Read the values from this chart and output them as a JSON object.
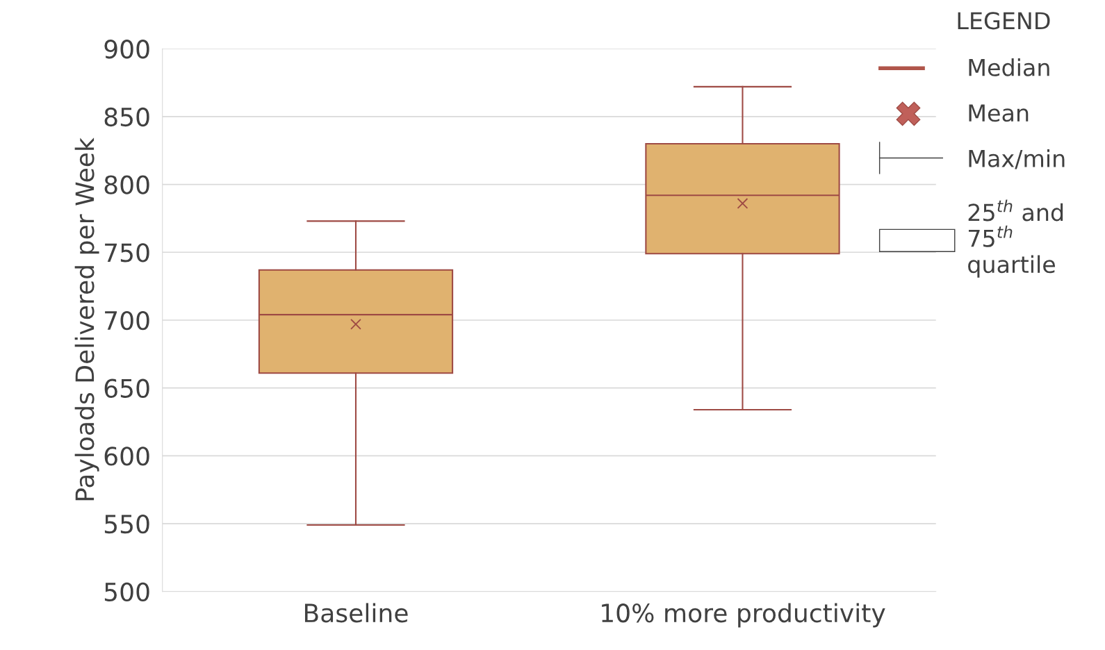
{
  "chart_data": {
    "type": "box",
    "ylabel": "Payloads Delivered per Week",
    "categories": [
      "Baseline",
      "10% more productivity"
    ],
    "boxes": [
      {
        "low": 549,
        "q1": 661,
        "median": 704,
        "q3": 737,
        "high": 773,
        "mean": 697
      },
      {
        "low": 634,
        "q1": 749,
        "median": 792,
        "q3": 830,
        "high": 872,
        "mean": 786
      }
    ],
    "color": "#e0b26f",
    "ylim": [
      500,
      900
    ],
    "yticks": [
      500,
      550,
      600,
      650,
      700,
      750,
      800,
      850,
      900
    ],
    "grid": "y",
    "annotations": [
      "LEGEND",
      "Median",
      "Mean",
      "Max/min",
      "25$^{th}$ and\n75$^{th}$\nquartile"
    ]
  }
}
